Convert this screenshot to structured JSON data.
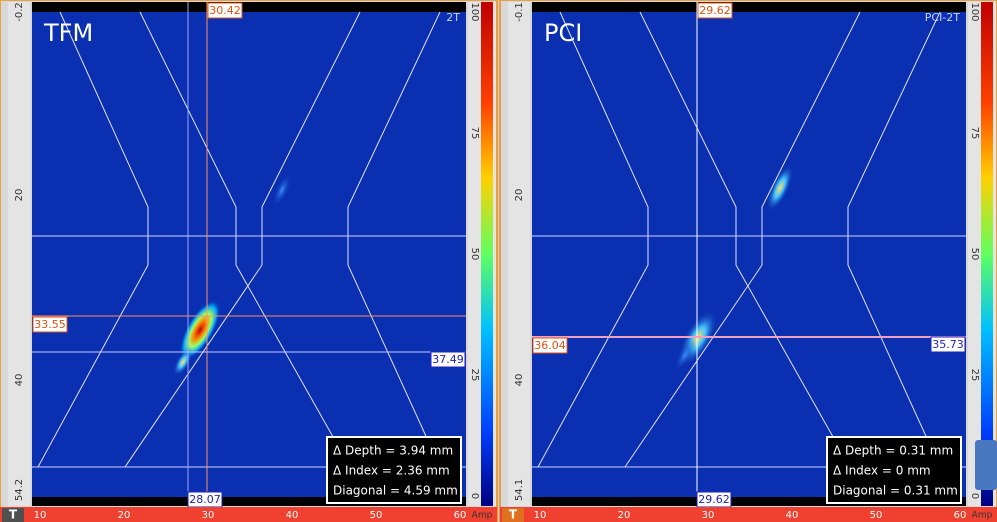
{
  "panels": [
    {
      "title": "TFM",
      "mode_label": "2T",
      "cursor_top": "30.42",
      "cursor_bottom": "28.07",
      "cursor_left": "33.55",
      "cursor_right": "37.49",
      "measurements": [
        "Δ Depth  = 3.94 mm",
        "Δ Index   = 2.36 mm",
        "Diagonal = 4.59 mm"
      ],
      "ruler_left": [
        "-0.2",
        "20",
        "40",
        "54.2"
      ],
      "ruler_bottom": [
        "10",
        "20",
        "30",
        "40",
        "50",
        "60"
      ],
      "unit": "Amp",
      "colorbar": [
        "100",
        "75",
        "50",
        "25",
        "0"
      ]
    },
    {
      "title": "PCI",
      "mode_label": "PCI-2T",
      "cursor_top": "29.62",
      "cursor_bottom": "29.62",
      "cursor_left": "36.04",
      "cursor_right": "35.73",
      "measurements": [
        "Δ Depth  = 0.31 mm",
        "Δ Index   = 0 mm",
        "Diagonal = 0.31 mm"
      ],
      "ruler_left": [
        "-0.1",
        "20",
        "40",
        "54.1"
      ],
      "ruler_bottom": [
        "10",
        "20",
        "30",
        "40",
        "50",
        "60"
      ],
      "unit": "Amp",
      "colorbar": [
        "100",
        "75",
        "50",
        "25",
        "0"
      ]
    }
  ]
}
